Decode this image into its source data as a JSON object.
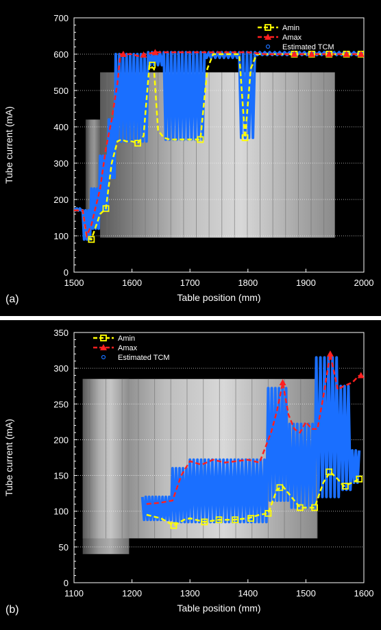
{
  "chart_data": [
    {
      "panel_label": "(a)",
      "type": "line",
      "xlabel": "Table position (mm)",
      "ylabel": "Tube current (mA)",
      "xlim": [
        1500,
        2000
      ],
      "ylim": [
        0,
        700
      ],
      "xticks": [
        "1500",
        "1600",
        "1700",
        "1800",
        "1900",
        "2000"
      ],
      "yticks": [
        "0",
        "100",
        "200",
        "300",
        "400",
        "500",
        "600",
        "700"
      ],
      "grid": "horizontal dotted",
      "legend_position": "top-right",
      "background": "grayscale CT scout image",
      "series": [
        {
          "name": "Amin",
          "color": "#ffff00",
          "marker": "square",
          "x": [
            1500,
            1515,
            1522,
            1530,
            1545,
            1555,
            1565,
            1575,
            1582,
            1590,
            1600,
            1610,
            1620,
            1630,
            1638,
            1645,
            1655,
            1665,
            1675,
            1685,
            1695,
            1705,
            1718,
            1730,
            1740,
            1750,
            1770,
            1785,
            1795,
            1805,
            1815,
            1830,
            1860,
            1900,
            1950,
            2000
          ],
          "y": [
            170,
            170,
            95,
            90,
            160,
            175,
            300,
            360,
            365,
            360,
            360,
            355,
            375,
            570,
            560,
            390,
            370,
            365,
            365,
            365,
            365,
            365,
            365,
            560,
            600,
            600,
            600,
            600,
            370,
            560,
            600,
            600,
            600,
            600,
            600,
            600
          ]
        },
        {
          "name": "Amax",
          "color": "#ff2020",
          "marker": "triangle",
          "x": [
            1500,
            1515,
            1522,
            1530,
            1545,
            1555,
            1565,
            1575,
            1580,
            1590,
            1600,
            1610,
            1625,
            1640,
            1660,
            1700,
            1740,
            1780,
            1800,
            1830,
            1860,
            1900,
            1950,
            2000
          ],
          "y": [
            170,
            170,
            100,
            130,
            230,
            340,
            420,
            520,
            600,
            600,
            600,
            595,
            600,
            605,
            605,
            605,
            605,
            605,
            605,
            600,
            600,
            600,
            600,
            600
          ]
        },
        {
          "name": "Estimated TCM",
          "color": "#1a6fff",
          "marker": "circle",
          "segments": [
            {
              "x0": 1500,
              "x1": 1515,
              "lo": 170,
              "hi": 175,
              "n": 3
            },
            {
              "x0": 1515,
              "x1": 1530,
              "lo": 90,
              "hi": 170,
              "n": 3
            },
            {
              "x0": 1530,
              "x1": 1545,
              "lo": 120,
              "hi": 230,
              "n": 3
            },
            {
              "x0": 1545,
              "x1": 1560,
              "lo": 170,
              "hi": 320,
              "n": 3
            },
            {
              "x0": 1560,
              "x1": 1572,
              "lo": 260,
              "hi": 420,
              "n": 3
            },
            {
              "x0": 1572,
              "x1": 1628,
              "lo": 360,
              "hi": 600,
              "n": 9
            },
            {
              "x0": 1628,
              "x1": 1655,
              "lo": 570,
              "hi": 605,
              "n": 4
            },
            {
              "x0": 1655,
              "x1": 1725,
              "lo": 365,
              "hi": 605,
              "n": 11
            },
            {
              "x0": 1725,
              "x1": 1785,
              "lo": 590,
              "hi": 605,
              "n": 8
            },
            {
              "x0": 1785,
              "x1": 1812,
              "lo": 370,
              "hi": 605,
              "n": 4
            },
            {
              "x0": 1812,
              "x1": 2000,
              "lo": 598,
              "hi": 605,
              "n": 22
            }
          ]
        }
      ],
      "marker_points": {
        "Amin": [
          [
            1530,
            90
          ],
          [
            1555,
            175
          ],
          [
            1610,
            355
          ],
          [
            1635,
            570
          ],
          [
            1718,
            365
          ],
          [
            1795,
            370
          ],
          [
            1880,
            600
          ],
          [
            1910,
            600
          ],
          [
            1940,
            600
          ],
          [
            1970,
            600
          ],
          [
            1995,
            600
          ]
        ],
        "Amax": [
          [
            1585,
            600
          ],
          [
            1620,
            598
          ],
          [
            1640,
            605
          ],
          [
            1880,
            600
          ],
          [
            1910,
            600
          ],
          [
            1940,
            600
          ],
          [
            1970,
            600
          ],
          [
            1995,
            600
          ]
        ]
      }
    },
    {
      "panel_label": "(b)",
      "type": "line",
      "xlabel": "Table position (mm)",
      "ylabel": "Tube current (mA)",
      "xlim": [
        1100,
        1600
      ],
      "ylim": [
        0,
        350
      ],
      "xticks": [
        "1100",
        "1200",
        "1300",
        "1400",
        "1500",
        "1600"
      ],
      "yticks": [
        "0",
        "50",
        "100",
        "150",
        "200",
        "250",
        "300",
        "350"
      ],
      "grid": "horizontal dotted",
      "legend_position": "top-left",
      "background": "grayscale CT scout image",
      "series": [
        {
          "name": "Amin",
          "color": "#ffff00",
          "marker": "square",
          "x": [
            1225,
            1250,
            1272,
            1290,
            1300,
            1325,
            1350,
            1375,
            1400,
            1420,
            1435,
            1450,
            1460,
            1475,
            1490,
            1505,
            1515,
            1530,
            1542,
            1555,
            1565,
            1580,
            1592
          ],
          "y": [
            95,
            90,
            80,
            88,
            90,
            85,
            88,
            88,
            90,
            95,
            97,
            130,
            135,
            120,
            105,
            105,
            105,
            140,
            155,
            145,
            135,
            140,
            145
          ]
        },
        {
          "name": "Amax",
          "color": "#ff2020",
          "marker": "triangle",
          "x": [
            1225,
            1250,
            1270,
            1285,
            1300,
            1320,
            1340,
            1360,
            1380,
            1400,
            1420,
            1440,
            1450,
            1460,
            1470,
            1480,
            1490,
            1500,
            1510,
            1520,
            1530,
            1542,
            1555,
            1565,
            1580,
            1592
          ],
          "y": [
            110,
            112,
            115,
            150,
            170,
            165,
            172,
            168,
            170,
            172,
            168,
            210,
            240,
            280,
            235,
            215,
            210,
            225,
            215,
            215,
            260,
            320,
            270,
            275,
            280,
            290
          ]
        },
        {
          "name": "Estimated TCM",
          "color": "#1a6fff",
          "marker": "circle",
          "segments": [
            {
              "x0": 1218,
              "x1": 1270,
              "lo": 88,
              "hi": 120,
              "n": 9
            },
            {
              "x0": 1270,
              "x1": 1300,
              "lo": 85,
              "hi": 160,
              "n": 5
            },
            {
              "x0": 1300,
              "x1": 1435,
              "lo": 85,
              "hi": 172,
              "n": 21
            },
            {
              "x0": 1435,
              "x1": 1472,
              "lo": 115,
              "hi": 272,
              "n": 6
            },
            {
              "x0": 1472,
              "x1": 1518,
              "lo": 105,
              "hi": 222,
              "n": 7
            },
            {
              "x0": 1518,
              "x1": 1560,
              "lo": 120,
              "hi": 315,
              "n": 6
            },
            {
              "x0": 1560,
              "x1": 1580,
              "lo": 130,
              "hi": 275,
              "n": 3
            },
            {
              "x0": 1580,
              "x1": 1592,
              "lo": 140,
              "hi": 185,
              "n": 2
            }
          ]
        }
      ],
      "marker_points": {
        "Amin": [
          [
            1272,
            80
          ],
          [
            1325,
            85
          ],
          [
            1350,
            88
          ],
          [
            1378,
            88
          ],
          [
            1405,
            90
          ],
          [
            1435,
            97
          ],
          [
            1455,
            133
          ],
          [
            1490,
            105
          ],
          [
            1515,
            105
          ],
          [
            1540,
            155
          ],
          [
            1568,
            135
          ],
          [
            1592,
            145
          ]
        ],
        "Amax": [
          [
            1460,
            280
          ],
          [
            1542,
            320
          ],
          [
            1595,
            290
          ]
        ]
      }
    }
  ]
}
